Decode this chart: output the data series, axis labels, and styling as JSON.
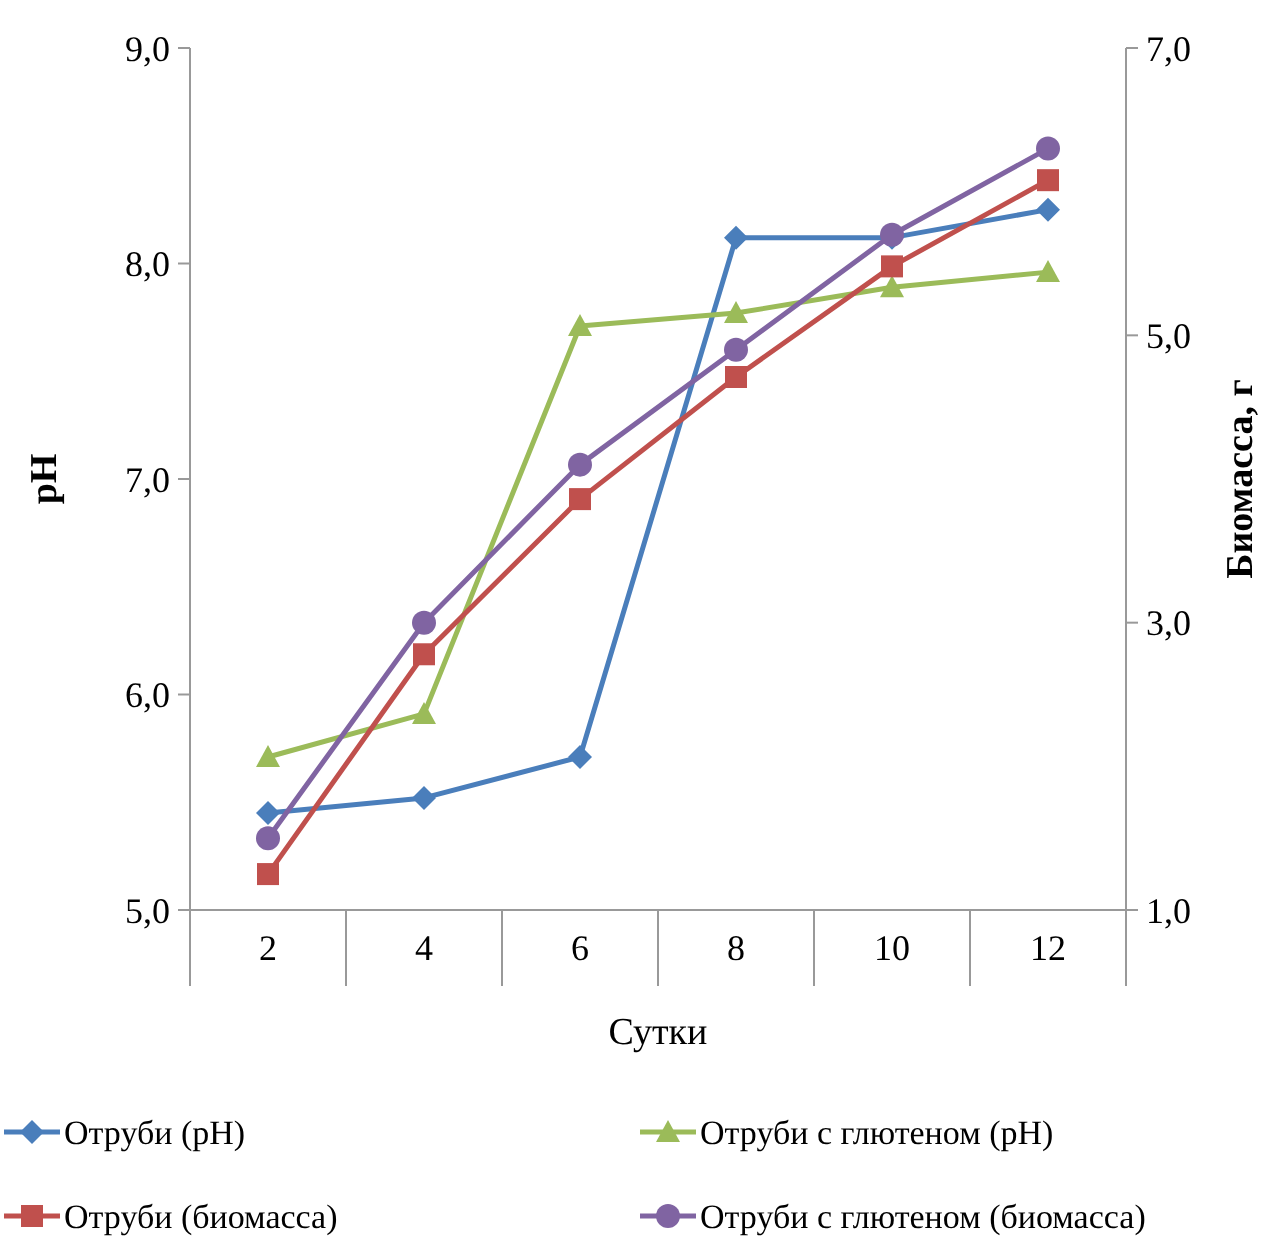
{
  "chart_data": {
    "type": "line",
    "xlabel": "Сутки",
    "ylabel": "pH",
    "y2label": "Биомасса, г",
    "categories": [
      "2",
      "4",
      "6",
      "8",
      "10",
      "12"
    ],
    "ylim": [
      5,
      9
    ],
    "yticks": [
      {
        "value": 5,
        "label": "5,0"
      },
      {
        "value": 6,
        "label": "6,0"
      },
      {
        "value": 7,
        "label": "7,0"
      },
      {
        "value": 8,
        "label": "8,0"
      },
      {
        "value": 9,
        "label": "9,0"
      }
    ],
    "y2lim": [
      1,
      7
    ],
    "y2ticks": [
      {
        "value": 1,
        "label": "1,0"
      },
      {
        "value": 3,
        "label": "3,0"
      },
      {
        "value": 5,
        "label": "5,0"
      },
      {
        "value": 7,
        "label": "7,0"
      }
    ],
    "legend": "bottom",
    "grid": false,
    "series": [
      {
        "name": "Отруби (pH)",
        "color": "#4a7ebb",
        "marker": "diamond",
        "values": [
          5.45,
          5.52,
          5.71,
          8.12,
          8.12,
          8.25
        ]
      },
      {
        "name": "Отруби с глютеном (pH)",
        "color": "#9bbb59",
        "marker": "triangle",
        "values": [
          5.71,
          5.91,
          7.71,
          7.77,
          7.89,
          7.96
        ]
      },
      {
        "name": "Отруби (биомасса)",
        "color": "#c0504d",
        "marker": "square",
        "axis": "y2",
        "values": [
          1.25,
          2.78,
          3.86,
          4.71,
          5.48,
          6.08
        ]
      },
      {
        "name": "Отруби с глютеном (биомасса)",
        "color": "#8064a2",
        "marker": "circle",
        "axis": "y2",
        "values": [
          1.5,
          3.0,
          4.1,
          4.9,
          5.7,
          6.3
        ]
      }
    ]
  }
}
